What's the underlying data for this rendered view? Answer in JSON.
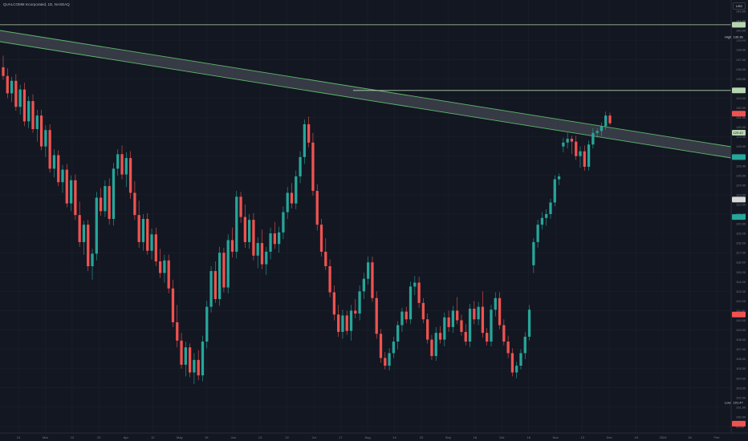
{
  "title": "QUALCOMM Incorporated, 1D, NASDAQ",
  "currency": "USD",
  "colors": {
    "background": "#131722",
    "grid": "#1e222d",
    "up": "#26a69a",
    "down": "#ef5350",
    "channel_line": "#5eb86a",
    "channel_fill": "#787b86",
    "horizontal_line": "#b7d5b0",
    "axis_text": "#787b86"
  },
  "price_axis": {
    "ticks": [
      "142.00",
      "141.00",
      "140.00",
      "139.00",
      "138.00",
      "137.00",
      "136.00",
      "135.00",
      "134.00",
      "133.00",
      "132.00",
      "131.00",
      "130.00",
      "129.00",
      "128.00",
      "127.00",
      "126.00",
      "125.00",
      "124.00",
      "123.00",
      "122.00",
      "121.00",
      "120.00",
      "119.00",
      "118.00",
      "117.00",
      "116.00",
      "115.00",
      "114.00",
      "113.00",
      "112.00",
      "111.00",
      "110.00",
      "109.00",
      "108.00",
      "107.00",
      "106.00",
      "105.00",
      "104.00",
      "103.00",
      "102.00",
      "101.00",
      "100.00",
      "99.00"
    ]
  },
  "time_axis": {
    "labels": [
      "13",
      "Mar",
      "13",
      "22",
      "Apr",
      "12",
      "May",
      "15",
      "Jun",
      "13",
      "22",
      "Jul",
      "17",
      "Aug",
      "14",
      "23",
      "Sep",
      "18",
      "Oct",
      "16",
      "Nov",
      "13",
      "Dec",
      "18",
      "2024",
      "16",
      "Feb"
    ]
  },
  "badges": {
    "high": {
      "label": "High",
      "value": "139.36"
    },
    "current": {
      "value": "129.42"
    },
    "low": {
      "label": "Low",
      "value": "101.47"
    }
  },
  "chart_data": {
    "type": "candlestick",
    "title": "QUALCOMM Incorporated, 1D, NASDAQ",
    "ylim": [
      98.5,
      142.5
    ],
    "series": [
      {
        "ohlc": [
          [
            136.2,
            137.4,
            134.9,
            135.3
          ],
          [
            135.3,
            136.1,
            133.0,
            133.5
          ],
          [
            133.5,
            135.2,
            132.6,
            134.8
          ],
          [
            134.8,
            135.5,
            131.7,
            132.1
          ],
          [
            132.1,
            134.4,
            131.3,
            133.9
          ],
          [
            133.9,
            134.6,
            130.1,
            130.6
          ],
          [
            130.6,
            133.2,
            129.9,
            132.7
          ],
          [
            132.7,
            133.4,
            129.4,
            129.8
          ],
          [
            129.8,
            131.8,
            128.5,
            131.2
          ],
          [
            131.2,
            131.8,
            127.6,
            128.0
          ],
          [
            128.0,
            130.2,
            126.9,
            129.7
          ],
          [
            129.7,
            130.3,
            125.3,
            125.7
          ],
          [
            125.7,
            127.7,
            124.8,
            127.1
          ],
          [
            127.1,
            127.6,
            123.9,
            124.3
          ],
          [
            124.3,
            126.1,
            123.2,
            125.6
          ],
          [
            125.6,
            126.2,
            121.7,
            122.1
          ],
          [
            122.1,
            125.0,
            121.3,
            124.5
          ],
          [
            124.5,
            125.1,
            120.4,
            120.9
          ],
          [
            120.9,
            122.3,
            117.6,
            118.1
          ],
          [
            118.1,
            120.3,
            116.8,
            119.9
          ],
          [
            119.9,
            120.4,
            115.1,
            115.6
          ],
          [
            115.6,
            117.4,
            114.2,
            116.9
          ],
          [
            116.9,
            123.3,
            116.2,
            122.7
          ],
          [
            122.7,
            123.7,
            120.8,
            121.3
          ],
          [
            121.3,
            124.5,
            120.7,
            123.9
          ],
          [
            123.9,
            124.7,
            119.9,
            120.5
          ],
          [
            120.5,
            126.3,
            119.8,
            125.7
          ],
          [
            125.7,
            127.7,
            125.0,
            127.2
          ],
          [
            127.2,
            128.1,
            124.6,
            125.1
          ],
          [
            125.1,
            127.4,
            123.8,
            126.8
          ],
          [
            126.8,
            127.5,
            122.6,
            123.2
          ],
          [
            123.2,
            124.4,
            120.4,
            120.9
          ],
          [
            120.9,
            122.4,
            117.5,
            118.1
          ],
          [
            118.1,
            121.0,
            117.2,
            120.5
          ],
          [
            120.5,
            121.1,
            116.8,
            117.2
          ],
          [
            117.2,
            119.5,
            116.3,
            118.9
          ],
          [
            118.9,
            119.6,
            115.6,
            116.1
          ],
          [
            116.1,
            117.4,
            114.4,
            114.9
          ],
          [
            114.9,
            116.8,
            113.9,
            116.2
          ],
          [
            116.2,
            116.8,
            112.8,
            113.3
          ],
          [
            113.3,
            114.2,
            109.3,
            109.8
          ],
          [
            109.8,
            111.6,
            107.2,
            107.9
          ],
          [
            107.9,
            108.7,
            105.0,
            105.4
          ],
          [
            105.4,
            107.8,
            104.2,
            107.2
          ],
          [
            107.2,
            107.6,
            104.1,
            104.6
          ],
          [
            104.6,
            106.6,
            103.4,
            105.9
          ],
          [
            105.9,
            106.9,
            103.8,
            104.3
          ],
          [
            104.3,
            108.4,
            103.7,
            107.8
          ],
          [
            107.8,
            112.0,
            107.1,
            111.4
          ],
          [
            111.4,
            115.6,
            110.8,
            115.1
          ],
          [
            115.1,
            116.1,
            111.8,
            112.2
          ],
          [
            112.2,
            117.6,
            111.5,
            117.0
          ],
          [
            117.0,
            117.5,
            112.9,
            113.4
          ],
          [
            113.4,
            118.9,
            112.8,
            118.3
          ],
          [
            118.3,
            119.6,
            116.5,
            117.1
          ],
          [
            117.1,
            123.4,
            116.4,
            122.8
          ],
          [
            122.8,
            123.3,
            120.1,
            120.7
          ],
          [
            120.7,
            122.0,
            117.5,
            118.1
          ],
          [
            118.1,
            121.0,
            117.4,
            120.4
          ],
          [
            120.4,
            121.1,
            116.2,
            116.7
          ],
          [
            116.7,
            118.6,
            115.4,
            118.0
          ],
          [
            118.0,
            119.4,
            115.3,
            115.8
          ],
          [
            115.8,
            117.6,
            114.7,
            117.1
          ],
          [
            117.1,
            119.6,
            116.3,
            119.0
          ],
          [
            119.0,
            120.2,
            117.4,
            117.9
          ],
          [
            117.9,
            119.7,
            117.0,
            119.1
          ],
          [
            119.1,
            121.8,
            118.4,
            121.2
          ],
          [
            121.2,
            123.8,
            120.5,
            123.2
          ],
          [
            123.2,
            124.2,
            121.6,
            122.1
          ],
          [
            122.1,
            125.5,
            121.5,
            124.9
          ],
          [
            124.9,
            127.5,
            124.2,
            126.9
          ],
          [
            126.9,
            130.8,
            126.2,
            130.3
          ],
          [
            130.3,
            131.1,
            127.9,
            128.4
          ],
          [
            128.4,
            129.4,
            122.9,
            123.4
          ],
          [
            123.4,
            124.1,
            119.3,
            119.9
          ],
          [
            119.9,
            120.5,
            116.6,
            117.1
          ],
          [
            117.1,
            118.5,
            115.2,
            115.6
          ],
          [
            115.6,
            116.3,
            112.4,
            112.9
          ],
          [
            112.9,
            113.6,
            110.0,
            110.6
          ],
          [
            110.6,
            111.6,
            108.3,
            108.8
          ],
          [
            108.8,
            111.1,
            108.1,
            110.5
          ],
          [
            110.5,
            111.0,
            108.5,
            108.9
          ],
          [
            108.9,
            111.6,
            107.9,
            111.0
          ],
          [
            111.0,
            112.2,
            110.2,
            110.7
          ],
          [
            110.7,
            113.6,
            110.0,
            113.0
          ],
          [
            113.0,
            114.9,
            112.2,
            114.3
          ],
          [
            114.3,
            116.6,
            113.7,
            116.0
          ],
          [
            116.0,
            116.6,
            111.9,
            112.3
          ],
          [
            112.3,
            113.0,
            108.1,
            108.6
          ],
          [
            108.6,
            109.1,
            105.6,
            106.1
          ],
          [
            106.1,
            106.7,
            104.9,
            105.3
          ],
          [
            105.3,
            107.1,
            104.8,
            106.6
          ],
          [
            106.6,
            108.3,
            106.1,
            107.8
          ],
          [
            107.8,
            109.9,
            107.0,
            109.5
          ],
          [
            109.5,
            111.3,
            108.8,
            110.9
          ],
          [
            110.9,
            111.4,
            109.7,
            110.1
          ],
          [
            110.1,
            114.0,
            109.6,
            113.5
          ],
          [
            113.5,
            114.6,
            112.6,
            113.9
          ],
          [
            113.9,
            114.5,
            111.3,
            111.8
          ],
          [
            111.8,
            112.3,
            109.7,
            110.1
          ],
          [
            110.1,
            110.7,
            107.6,
            108.0
          ],
          [
            108.0,
            108.5,
            105.9,
            106.3
          ],
          [
            106.3,
            109.3,
            105.8,
            108.7
          ],
          [
            108.7,
            109.4,
            107.6,
            108.0
          ],
          [
            108.0,
            110.8,
            107.3,
            110.3
          ],
          [
            110.3,
            111.0,
            108.8,
            109.3
          ],
          [
            109.3,
            111.5,
            108.7,
            111.0
          ],
          [
            111.0,
            112.4,
            109.6,
            110.0
          ],
          [
            110.0,
            110.6,
            108.4,
            108.8
          ],
          [
            108.8,
            109.6,
            107.4,
            107.8
          ],
          [
            107.8,
            111.7,
            107.2,
            111.2
          ],
          [
            111.2,
            112.0,
            109.6,
            110.1
          ],
          [
            110.1,
            111.9,
            109.5,
            111.4
          ],
          [
            111.4,
            113.0,
            108.2,
            108.7
          ],
          [
            108.7,
            109.2,
            107.4,
            107.8
          ],
          [
            107.8,
            111.6,
            107.3,
            111.1
          ],
          [
            111.1,
            112.9,
            110.4,
            112.3
          ],
          [
            112.3,
            112.9,
            109.1,
            109.5
          ],
          [
            109.5,
            110.1,
            107.4,
            107.8
          ],
          [
            107.8,
            108.4,
            106.1,
            106.6
          ],
          [
            106.6,
            107.1,
            104.2,
            104.6
          ],
          [
            104.6,
            105.7,
            104.0,
            105.3
          ],
          [
            105.3,
            107.0,
            104.9,
            106.6
          ],
          [
            106.6,
            108.8,
            106.0,
            108.3
          ],
          [
            108.3,
            111.6,
            107.9,
            111.1
          ],
          [
            115.7,
            118.5,
            114.9,
            118.1
          ],
          [
            118.1,
            120.4,
            117.5,
            119.9
          ],
          [
            119.9,
            121.2,
            119.4,
            120.6
          ],
          [
            120.6,
            121.5,
            119.8,
            121.0
          ],
          [
            121.0,
            122.6,
            120.5,
            122.2
          ],
          [
            122.2,
            125.0,
            121.8,
            124.6
          ],
          [
            124.6,
            125.2,
            124.0,
            124.9
          ],
          [
            128.0,
            128.9,
            127.4,
            128.4
          ],
          [
            128.4,
            129.4,
            127.8,
            128.8
          ],
          [
            128.8,
            129.1,
            127.2,
            128.5
          ],
          [
            128.5,
            129.1,
            126.6,
            127.0
          ],
          [
            127.0,
            128.0,
            125.8,
            127.5
          ],
          [
            127.5,
            128.1,
            125.5,
            125.9
          ],
          [
            125.9,
            128.6,
            125.5,
            128.2
          ],
          [
            128.2,
            129.9,
            127.8,
            129.4
          ],
          [
            129.4,
            129.9,
            128.9,
            129.6
          ],
          [
            129.6,
            130.5,
            129.1,
            130.1
          ],
          [
            130.1,
            131.6,
            129.7,
            131.2
          ],
          [
            131.2,
            131.5,
            130.2,
            130.4
          ]
        ]
      }
    ]
  }
}
